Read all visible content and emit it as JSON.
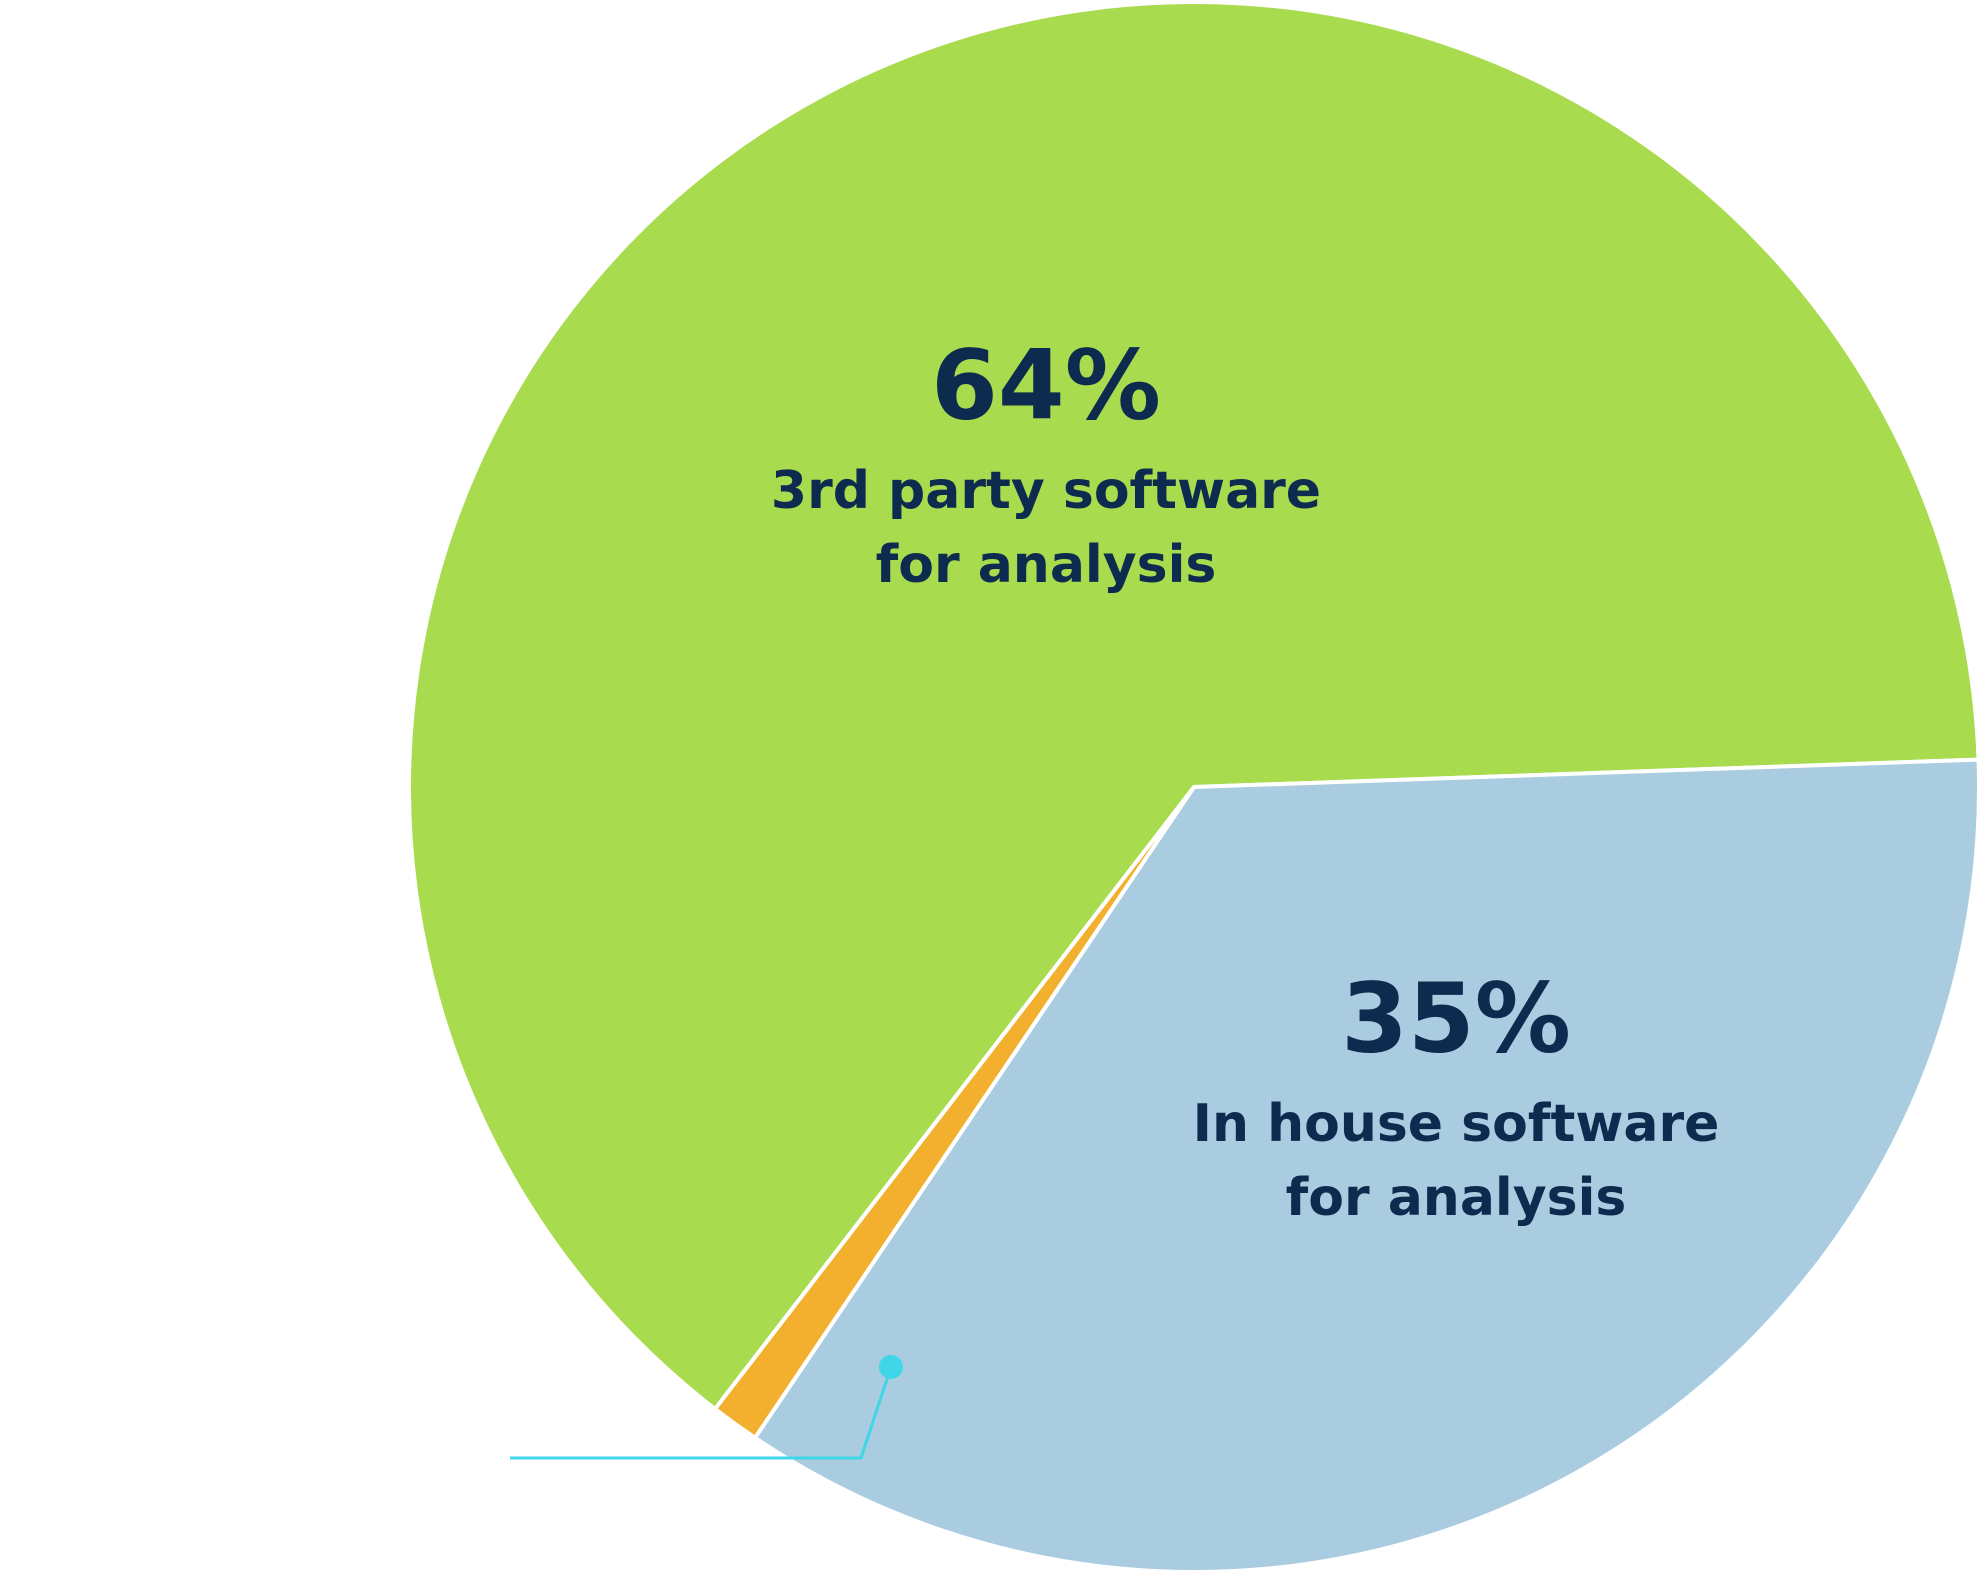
{
  "chart_data": {
    "type": "pie",
    "categories": [
      [
        "3rd party software",
        "for analysis"
      ],
      [
        "In house software",
        "for analysis"
      ],
      null
    ],
    "values": [
      64,
      35,
      1
    ],
    "value_labels": [
      "64%",
      "35%",
      null
    ],
    "colors": [
      "#a9db4f",
      "#a9cce0",
      "#f3b02e"
    ]
  }
}
